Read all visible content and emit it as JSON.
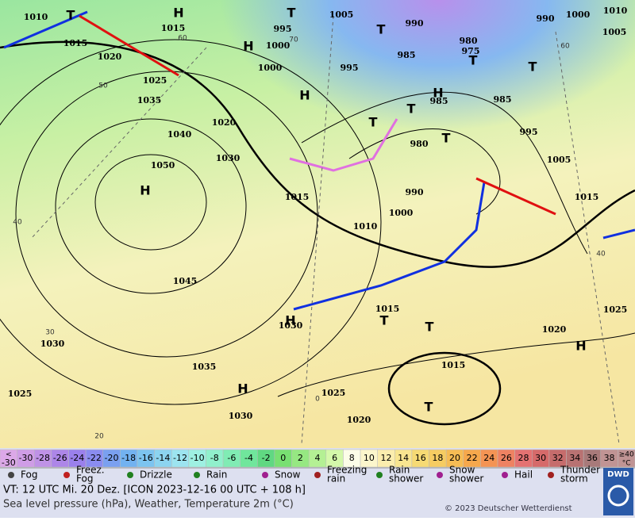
{
  "map": {
    "isobar_labels": [
      "1010",
      "1015",
      "1015",
      "1020",
      "1025",
      "1035",
      "1040",
      "1050",
      "1020",
      "1030",
      "1045",
      "1035",
      "1030",
      "1025",
      "1030",
      "1025",
      "1020",
      "1030",
      "1015",
      "1015",
      "1010",
      "1015",
      "1000",
      "990",
      "980",
      "985",
      "995",
      "1000",
      "1000",
      "995",
      "1005",
      "990",
      "980",
      "975",
      "985",
      "985",
      "995",
      "1005",
      "1015",
      "1020",
      "1025",
      "990",
      "1000",
      "1010",
      "1005"
    ],
    "centers": [
      "H",
      "T",
      "H",
      "H",
      "T",
      "T",
      "T",
      "T",
      "H",
      "T",
      "T",
      "T",
      "H",
      "T",
      "T",
      "H",
      "H",
      "T",
      "H"
    ],
    "grid_labels": [
      "60",
      "50",
      "40",
      "30",
      "20",
      "40",
      "60",
      "0",
      "70"
    ]
  },
  "legend": {
    "scale": {
      "below": [
        "<",
        "-30"
      ],
      "values": [
        -30,
        -28,
        -26,
        -24,
        -22,
        -20,
        -18,
        -16,
        -14,
        -12,
        -10,
        -8,
        -6,
        -4,
        -2,
        0,
        2,
        4,
        6,
        8,
        10,
        12,
        14,
        16,
        18,
        20,
        22,
        24,
        26,
        28,
        30,
        32,
        34,
        36,
        38
      ],
      "above": [
        "≥40",
        "°C"
      ],
      "colors": [
        "#dca8e8",
        "#cf9de6",
        "#bf92e6",
        "#ad86e8",
        "#9a80ec",
        "#8a8cf0",
        "#7aa0f0",
        "#72b2f0",
        "#7cc4f0",
        "#8cd4f0",
        "#9ce4f0",
        "#9ef0e2",
        "#90f0cc",
        "#80ecb4",
        "#70e69c",
        "#60d882",
        "#78e072",
        "#96e882",
        "#b4f094",
        "#d4f8aa",
        "#fcfde8",
        "#fcf6cc",
        "#fbedae",
        "#f8e590",
        "#f6da74",
        "#f6cc62",
        "#f6bc54",
        "#f6a84c",
        "#f49454",
        "#ee8262",
        "#e47272",
        "#d66a6a",
        "#c66c6c",
        "#b87272",
        "#a87a7a",
        "#c09494"
      ]
    },
    "weather": [
      [
        "Fog"
      ],
      [
        "Freez.",
        "Fog"
      ],
      [
        "Drizzle"
      ],
      [
        "Rain"
      ],
      [
        "Snow"
      ],
      [
        "Freezing",
        "rain"
      ],
      [
        "Rain",
        "shower"
      ],
      [
        "Snow",
        "shower"
      ],
      [
        "Hail"
      ],
      [
        "Thunder",
        "storm"
      ]
    ]
  },
  "footer": {
    "valid_time": "VT: 12 UTC Mi.  20 Dez. [ICON 2023-12-16  00 UTC + 108 h]",
    "description": "Sea level pressure (hPa), Weather, Temperature 2m (°C)",
    "copyright": "© 2023 Deutscher Wetterdienst",
    "logo": "DWD"
  }
}
